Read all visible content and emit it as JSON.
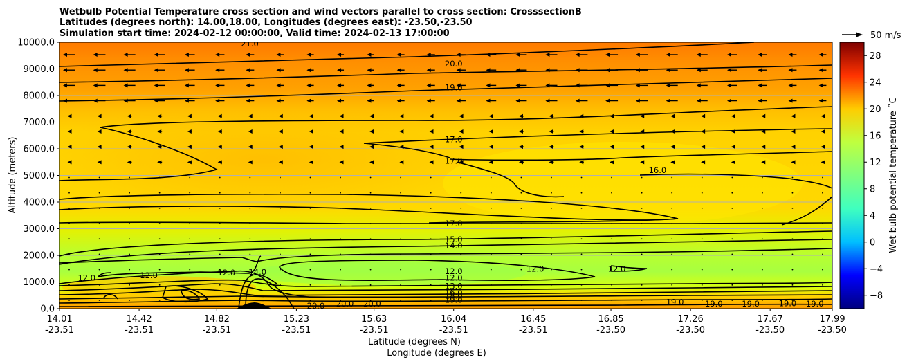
{
  "chart_data": {
    "type": "heatmap",
    "title_lines": [
      "Wetbulb Potential Temperature cross section and wind vectors parallel to cross section: CrosssectionB",
      "Latitudes (degrees north): 14.00,18.00, Longitudes (degrees east): -23.50,-23.50",
      "Simulation start time: 2024-02-12 00:00:00, Valid time: 2024-02-13 17:00:00"
    ],
    "xlabel": "Latitude (degrees N)",
    "xlabel2": "Longitude (degrees E)",
    "ylabel": "Altitude (meters)",
    "x_ticks": [
      {
        "lat": "14.01",
        "lon": "-23.51",
        "v": 14.01
      },
      {
        "lat": "14.42",
        "lon": "-23.51",
        "v": 14.42
      },
      {
        "lat": "14.82",
        "lon": "-23.51",
        "v": 14.82
      },
      {
        "lat": "15.23",
        "lon": "-23.51",
        "v": 15.23
      },
      {
        "lat": "15.63",
        "lon": "-23.51",
        "v": 15.63
      },
      {
        "lat": "16.04",
        "lon": "-23.51",
        "v": 16.04
      },
      {
        "lat": "16.45",
        "lon": "-23.51",
        "v": 16.45
      },
      {
        "lat": "16.85",
        "lon": "-23.50",
        "v": 16.85
      },
      {
        "lat": "17.26",
        "lon": "-23.50",
        "v": 17.26
      },
      {
        "lat": "17.67",
        "lon": "-23.50",
        "v": 17.67
      },
      {
        "lat": "17.99",
        "lon": "-23.50",
        "v": 17.99
      }
    ],
    "xlim": [
      14.01,
      17.99
    ],
    "y_ticks": [
      "0.0",
      "1000.0",
      "2000.0",
      "3000.0",
      "4000.0",
      "5000.0",
      "6000.0",
      "7000.0",
      "8000.0",
      "9000.0",
      "10000.0"
    ],
    "ylim": [
      0,
      10000
    ],
    "grid": "horizontal",
    "colorbar": {
      "label": "Wet bulb potential temperature ˚C",
      "ticks": [
        "-8",
        "-4",
        "0",
        "4",
        "8",
        "12",
        "16",
        "20",
        "24",
        "28"
      ],
      "range": [
        -10,
        30
      ],
      "colormap": "jet"
    },
    "quiver_key": "50 m/s",
    "contour_labels": [
      {
        "text": "21.0",
        "x": 14.99,
        "y": 9950
      },
      {
        "text": "20.0",
        "x": 16.04,
        "y": 9200
      },
      {
        "text": "19.0",
        "x": 16.04,
        "y": 8300
      },
      {
        "text": "17.0",
        "x": 16.04,
        "y": 6350
      },
      {
        "text": "17.0",
        "x": 16.04,
        "y": 5550
      },
      {
        "text": "16.0",
        "x": 17.09,
        "y": 5200
      },
      {
        "text": "17.0",
        "x": 16.04,
        "y": 3200
      },
      {
        "text": "15.0",
        "x": 16.04,
        "y": 2600
      },
      {
        "text": "14.0",
        "x": 16.04,
        "y": 2370
      },
      {
        "text": "12.0",
        "x": 16.04,
        "y": 1400
      },
      {
        "text": "12.0",
        "x": 16.04,
        "y": 1150
      },
      {
        "text": "12.0",
        "x": 14.15,
        "y": 1150
      },
      {
        "text": "12.0",
        "x": 14.47,
        "y": 1250
      },
      {
        "text": "12.0",
        "x": 14.87,
        "y": 1350
      },
      {
        "text": "14.0",
        "x": 15.03,
        "y": 1380
      },
      {
        "text": "12.0",
        "x": 16.46,
        "y": 1500
      },
      {
        "text": "12.0",
        "x": 16.88,
        "y": 1500
      },
      {
        "text": "13.0",
        "x": 16.04,
        "y": 850
      },
      {
        "text": "16.0",
        "x": 16.04,
        "y": 600
      },
      {
        "text": "18.0",
        "x": 16.04,
        "y": 480
      },
      {
        "text": "19.0",
        "x": 16.04,
        "y": 330
      },
      {
        "text": "20.0",
        "x": 15.33,
        "y": 100
      },
      {
        "text": "20.0",
        "x": 15.48,
        "y": 180
      },
      {
        "text": "20.0",
        "x": 15.62,
        "y": 180
      },
      {
        "text": "19.0",
        "x": 17.18,
        "y": 250
      },
      {
        "text": "19.0",
        "x": 17.38,
        "y": 180
      },
      {
        "text": "19.0",
        "x": 17.57,
        "y": 180
      },
      {
        "text": "19.0",
        "x": 17.76,
        "y": 200
      },
      {
        "text": "19.0",
        "x": 17.9,
        "y": 180
      }
    ]
  }
}
